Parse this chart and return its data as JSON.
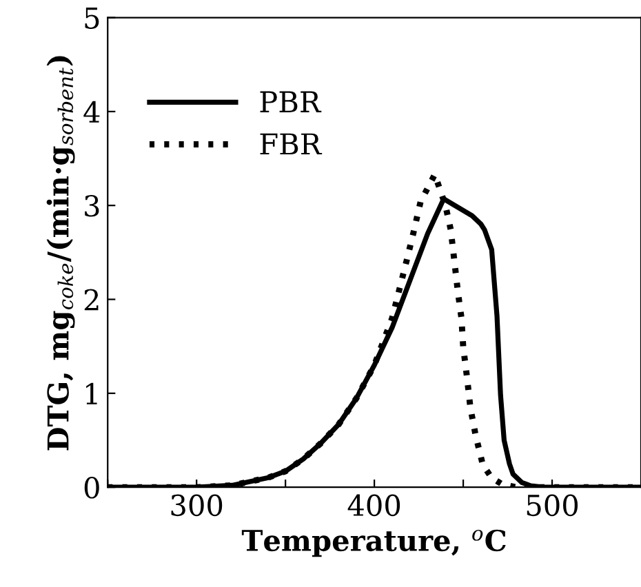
{
  "chart_data": {
    "type": "line",
    "xlabel": "Temperature, $^{o}$C",
    "ylabel": "DTG, mg$_{coke}$/(min·g$_{sorbent}$)",
    "xlim": [
      250,
      550
    ],
    "ylim": [
      0,
      5
    ],
    "xticks": [
      {
        "value": 250,
        "label": null
      },
      300,
      {
        "value": 350,
        "label": null
      },
      400,
      {
        "value": 450,
        "label": null
      },
      500
    ],
    "yticks": [
      0,
      1,
      2,
      3,
      4,
      5
    ],
    "grid": false,
    "legend": "top left",
    "marker": "none",
    "series": [
      {
        "name": "PBR",
        "color": "#000000",
        "line_style": "solid",
        "x": [
          250,
          300,
          320,
          340,
          350,
          360,
          370,
          380,
          390,
          400,
          410,
          420,
          430,
          439,
          447,
          455,
          460,
          462,
          466,
          469,
          471,
          473,
          476,
          478,
          483,
          488,
          495,
          500,
          550
        ],
        "values": [
          0,
          0,
          0.02,
          0.1,
          0.17,
          0.3,
          0.47,
          0.67,
          0.95,
          1.3,
          1.7,
          2.2,
          2.7,
          3.07,
          2.98,
          2.89,
          2.8,
          2.74,
          2.53,
          1.82,
          0.98,
          0.5,
          0.25,
          0.14,
          0.05,
          0.015,
          0,
          0,
          0
        ]
      },
      {
        "name": "FBR",
        "color": "#000000",
        "line_style": "dotted",
        "x": [
          250,
          300,
          320,
          340,
          350,
          360,
          370,
          380,
          390,
          400,
          410,
          418,
          422,
          426,
          434,
          440,
          443,
          445,
          447,
          449,
          450,
          452,
          454,
          457,
          461,
          466,
          472,
          480,
          550
        ],
        "values": [
          0,
          0,
          0.02,
          0.1,
          0.17,
          0.3,
          0.47,
          0.67,
          0.95,
          1.3,
          1.8,
          2.4,
          2.71,
          3.04,
          3.33,
          3.0,
          2.74,
          2.41,
          2.08,
          1.8,
          1.49,
          1.19,
          0.85,
          0.55,
          0.24,
          0.1,
          0.03,
          0,
          0
        ]
      }
    ]
  }
}
